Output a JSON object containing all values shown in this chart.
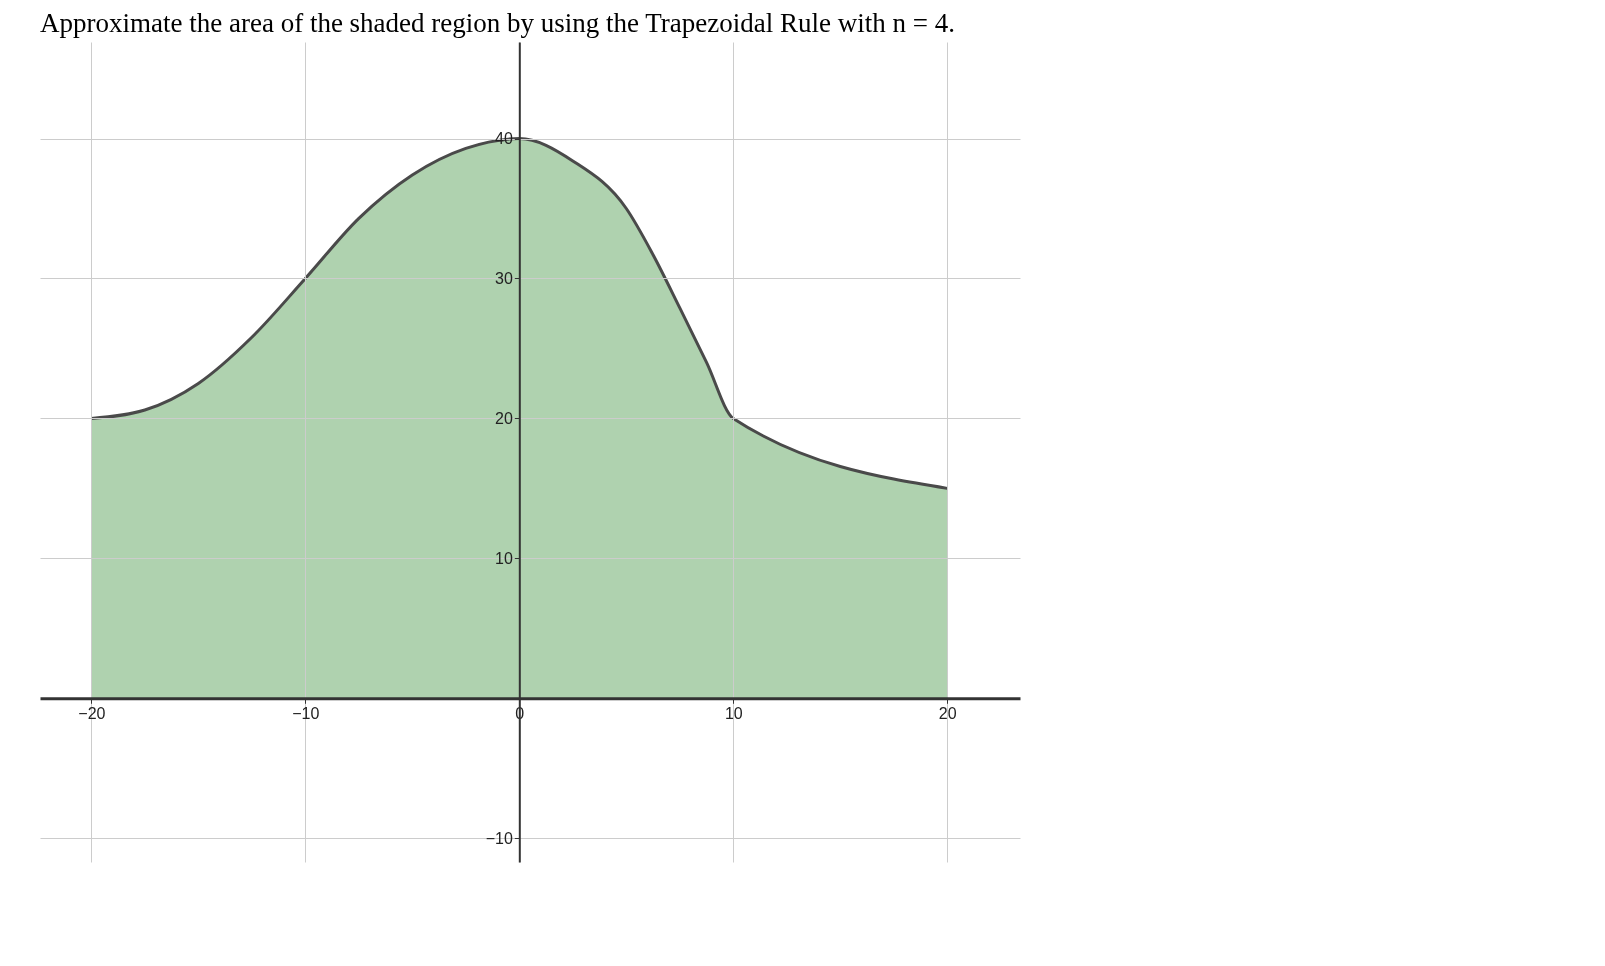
{
  "chart_data": {
    "type": "area",
    "title": "Approximate the area of the shaded region by using the Trapezoidal Rule with n = 4.",
    "x": [
      -20,
      -17.5,
      -15,
      -12.5,
      -10,
      -7.5,
      -5,
      -2.5,
      0,
      2.5,
      5,
      6.25,
      7.5,
      8.75,
      10,
      20
    ],
    "series": [
      {
        "color": "#abd0ab",
        "values": [
          20,
          20.6,
          22.5,
          25.8,
          30,
          34.3,
          37.4,
          39.3,
          40,
          38.4,
          35,
          31.7,
          27.9,
          24,
          20,
          15
        ]
      }
    ],
    "xlim": [
      -22.4,
      23.4
    ],
    "ylim": [
      -11.7,
      46.9
    ],
    "xticks": [
      -20,
      -10,
      0,
      10,
      20
    ],
    "yticks": [
      -10,
      10,
      20,
      30,
      40
    ],
    "grid": true
  }
}
